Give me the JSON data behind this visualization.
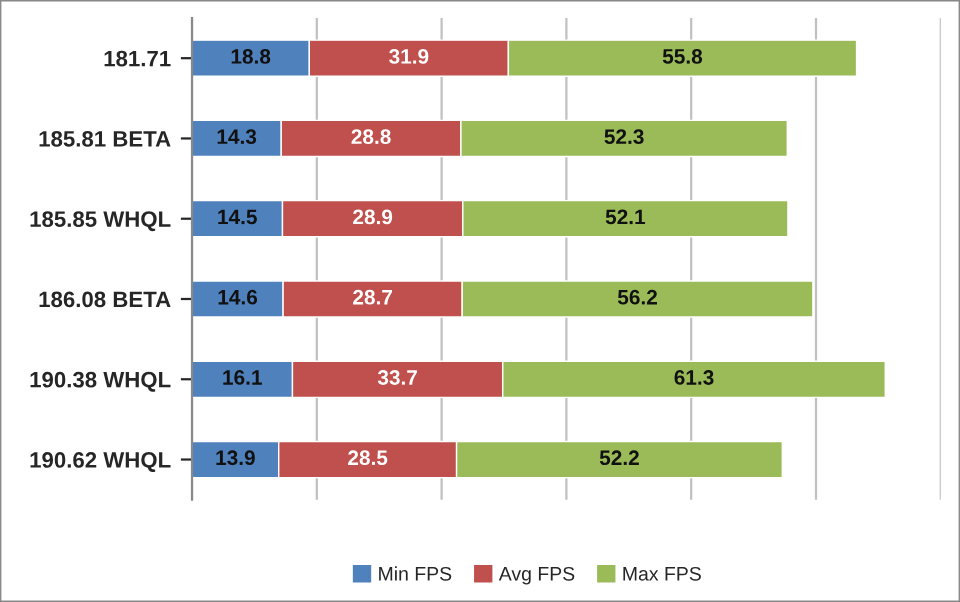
{
  "chart_data": {
    "type": "bar",
    "orientation": "horizontal",
    "stacked": true,
    "categories": [
      "181.71",
      "185.81 BETA",
      "185.85 WHQL",
      "186.08 BETA",
      "190.38 WHQL",
      "190.62 WHQL"
    ],
    "series": [
      {
        "name": "Min FPS",
        "color": "#4f81bd",
        "values": [
          18.8,
          14.3,
          14.5,
          14.6,
          16.1,
          13.9
        ]
      },
      {
        "name": "Avg FPS",
        "color": "#c0504d",
        "values": [
          31.9,
          28.8,
          28.9,
          28.7,
          33.7,
          28.5
        ]
      },
      {
        "name": "Max FPS",
        "color": "#9bbb59",
        "values": [
          55.8,
          52.3,
          52.1,
          56.2,
          61.3,
          52.2
        ]
      }
    ],
    "xlim": [
      0,
      120
    ],
    "xticks": [
      {
        "value": 0,
        "label": null
      },
      {
        "value": 20,
        "label": null
      },
      {
        "value": 40,
        "label": null
      },
      {
        "value": 60,
        "label": null
      },
      {
        "value": 80,
        "label": null
      },
      {
        "value": 100,
        "label": null
      },
      {
        "value": 120,
        "label": null
      }
    ],
    "tick_labels": "y",
    "grid": "x",
    "legend": "bottom",
    "data_labels": true
  }
}
